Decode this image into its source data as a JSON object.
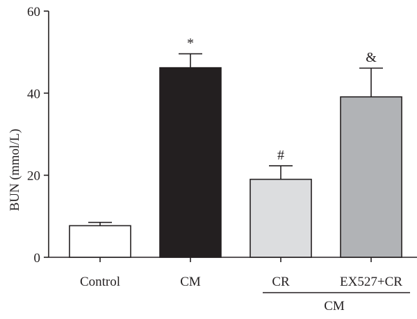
{
  "chart_data": {
    "type": "bar",
    "title": "",
    "ylabel": "BUN (mmol/L)",
    "xlabel": "",
    "ylim": [
      0,
      60
    ],
    "yticks": [
      0,
      20,
      40,
      60
    ],
    "categories": [
      "Control",
      "CM",
      "CR",
      "EX527+CR"
    ],
    "values": [
      7.7,
      46.2,
      19.0,
      39.1
    ],
    "errors": [
      0.8,
      3.4,
      3.3,
      7.0
    ],
    "markers": [
      "",
      "*",
      "#",
      "&"
    ],
    "colors": [
      "#ffffff",
      "#231f20",
      "#dcdddf",
      "#b1b3b6"
    ],
    "group_label": "CM",
    "group_categories": [
      "CR",
      "EX527+CR"
    ],
    "grid": false,
    "legend": "none"
  }
}
